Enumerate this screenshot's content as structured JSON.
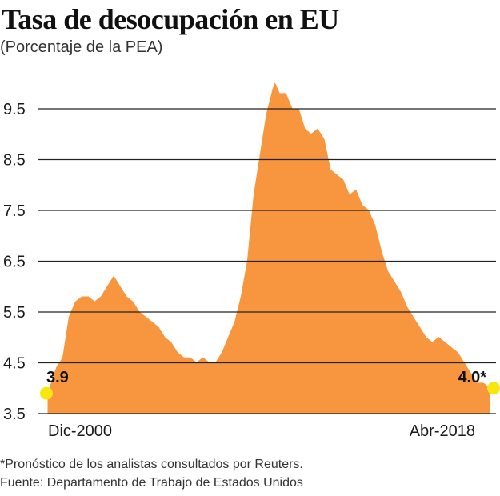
{
  "header": {
    "title": "Tasa de desocupación en EU",
    "subtitle": "(Porcentaje de la PEA)"
  },
  "footer": {
    "note": "*Pronóstico de los analistas consultados por Reuters.",
    "source": "Fuente: Departamento de Trabajo de Estados Unidos"
  },
  "colors": {
    "area_fill": "#F7963E",
    "gridline": "#222222",
    "endpoint_marker": "#F7E70F",
    "text": "#1a1a1a"
  },
  "chart_data": {
    "type": "area",
    "title": "Tasa de desocupación en EU",
    "subtitle": "(Porcentaje de la PEA)",
    "xlabel": "",
    "ylabel": "",
    "ylim": [
      3.5,
      10.0
    ],
    "y_ticks": [
      3.5,
      4.5,
      5.5,
      6.5,
      7.5,
      8.5,
      9.5
    ],
    "y_tick_labels": [
      "3.5",
      "4.5",
      "5.5",
      "6.5",
      "7.5",
      "8.5",
      "9.5"
    ],
    "x_tick_labels": [
      "Dic-2000",
      "Abr-2018"
    ],
    "grid": true,
    "x_start": 2000.92,
    "x_end": 2018.25,
    "series": [
      {
        "name": "Tasa de desocupación",
        "x": [
          2000.92,
          2001.25,
          2001.5,
          2001.75,
          2002.0,
          2002.25,
          2002.5,
          2002.75,
          2003.0,
          2003.25,
          2003.5,
          2003.75,
          2004.0,
          2004.25,
          2004.5,
          2004.75,
          2005.0,
          2005.25,
          2005.5,
          2005.75,
          2006.0,
          2006.25,
          2006.5,
          2006.75,
          2007.0,
          2007.25,
          2007.5,
          2007.75,
          2008.0,
          2008.25,
          2008.5,
          2008.75,
          2009.0,
          2009.25,
          2009.5,
          2009.75,
          2009.83,
          2010.0,
          2010.25,
          2010.5,
          2010.75,
          2011.0,
          2011.25,
          2011.5,
          2011.75,
          2012.0,
          2012.25,
          2012.5,
          2012.75,
          2013.0,
          2013.25,
          2013.5,
          2013.75,
          2014.0,
          2014.25,
          2014.5,
          2014.75,
          2015.0,
          2015.25,
          2015.5,
          2015.75,
          2016.0,
          2016.25,
          2016.5,
          2016.75,
          2017.0,
          2017.25,
          2017.5,
          2017.75,
          2018.0,
          2018.25
        ],
        "values": [
          3.9,
          4.4,
          4.6,
          5.4,
          5.7,
          5.8,
          5.8,
          5.7,
          5.8,
          6.0,
          6.2,
          6.0,
          5.8,
          5.7,
          5.5,
          5.4,
          5.3,
          5.2,
          5.0,
          4.9,
          4.7,
          4.6,
          4.6,
          4.5,
          4.6,
          4.5,
          4.5,
          4.7,
          5.0,
          5.3,
          5.8,
          6.5,
          7.8,
          8.6,
          9.4,
          9.9,
          10.0,
          9.8,
          9.8,
          9.5,
          9.5,
          9.1,
          9.0,
          9.1,
          8.9,
          8.3,
          8.2,
          8.1,
          7.8,
          7.9,
          7.6,
          7.5,
          7.2,
          6.7,
          6.3,
          6.1,
          5.9,
          5.6,
          5.4,
          5.2,
          5.0,
          4.9,
          5.0,
          4.9,
          4.8,
          4.7,
          4.5,
          4.3,
          4.1,
          4.1,
          4.0
        ]
      }
    ],
    "annotations": [
      {
        "name": "start-value-label",
        "text": "3.9",
        "x": 2000.92,
        "value": 3.9
      },
      {
        "name": "end-value-label",
        "text": "4.0*",
        "x": 2018.25,
        "value": 4.0
      }
    ]
  }
}
